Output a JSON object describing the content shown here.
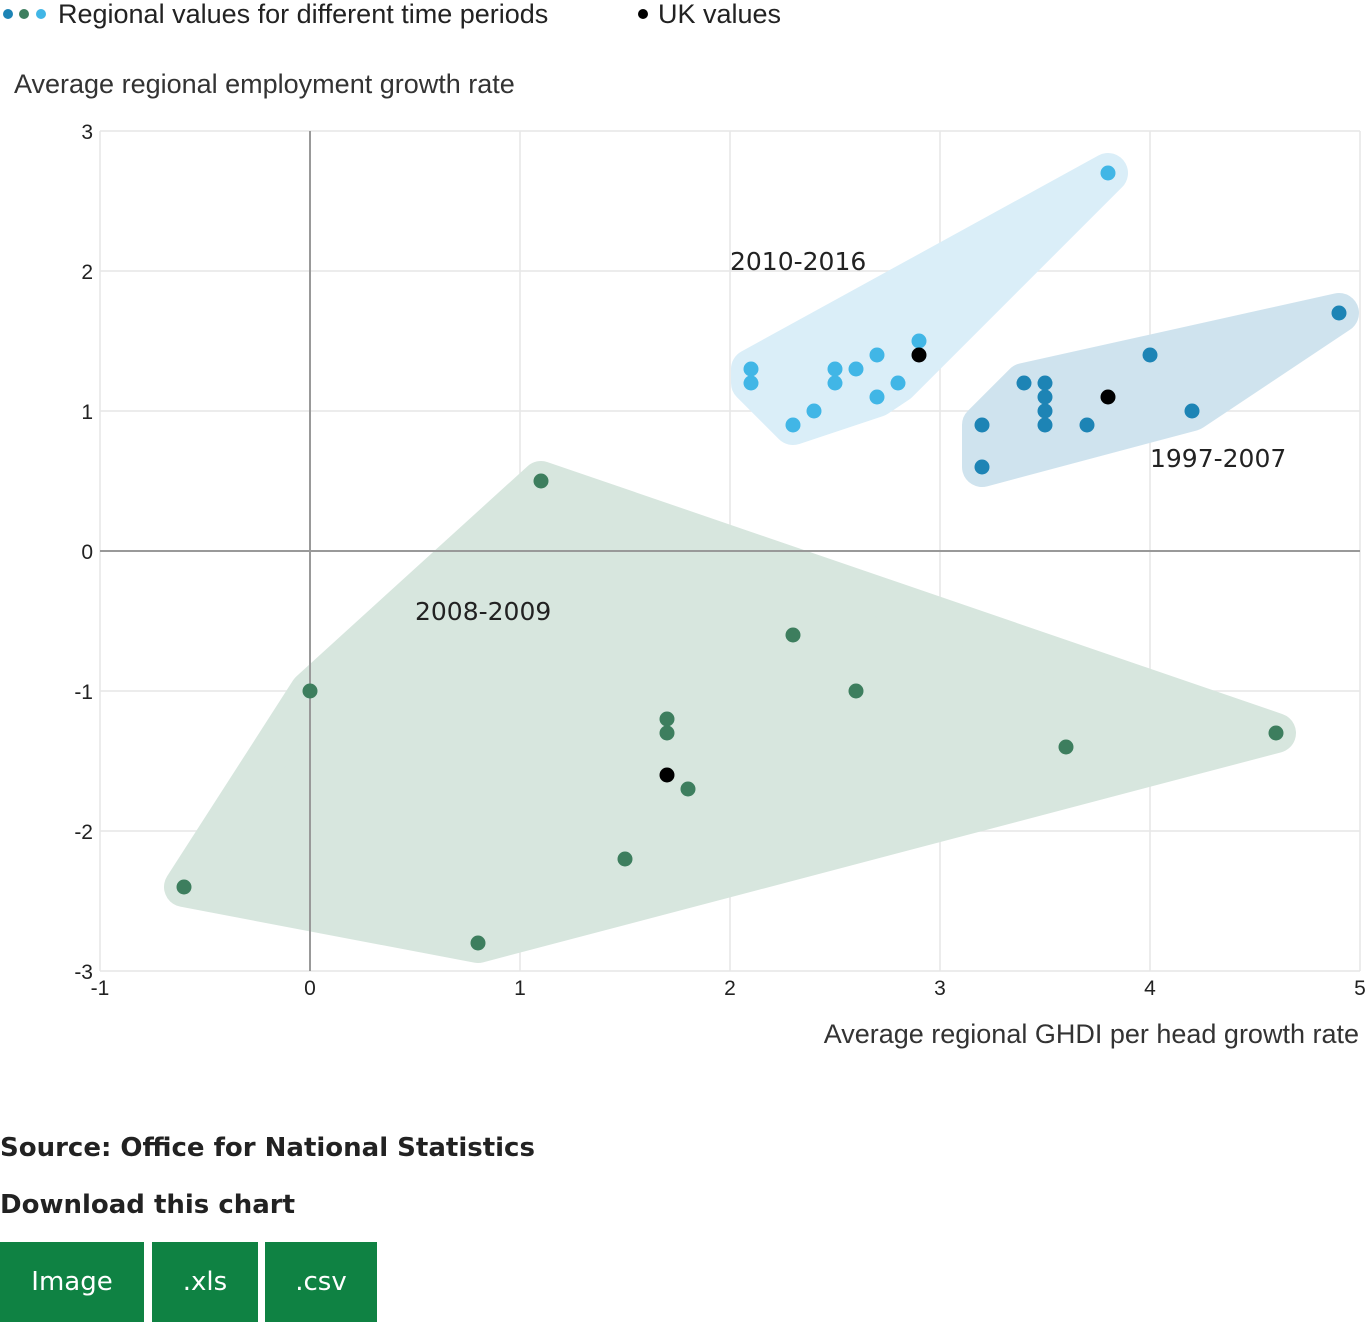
{
  "legend": {
    "regional_label": "Regional values for different time periods",
    "uk_label": "UK values"
  },
  "colors": {
    "p1997": "#1d84b5",
    "p2008": "#3d7e5e",
    "p2010": "#41b6e6",
    "uk": "#000000",
    "hull1997": "#cfe3ee",
    "hull2008": "#d7e6de",
    "hull2010": "#daeef8",
    "button": "#0f8243"
  },
  "chart_data": {
    "type": "scatter",
    "title": "",
    "xlabel": "Average regional GHDI per head growth rate",
    "ylabel": "Average regional employment growth rate",
    "xlim": [
      -1,
      5
    ],
    "ylim": [
      -3,
      3
    ],
    "xticks": [
      "-1",
      "0",
      "1",
      "2",
      "3",
      "4",
      "5"
    ],
    "yticks": [
      "-3",
      "-2",
      "-1",
      "0",
      "1",
      "2",
      "3"
    ],
    "grid": true,
    "legend_position": "top-left",
    "series": [
      {
        "name": "1997-2007",
        "points": [
          [
            3.2,
            0.9
          ],
          [
            3.2,
            0.6
          ],
          [
            3.4,
            1.2
          ],
          [
            3.5,
            1.2
          ],
          [
            3.5,
            1.1
          ],
          [
            3.5,
            1.0
          ],
          [
            3.5,
            0.9
          ],
          [
            3.7,
            0.9
          ],
          [
            4.0,
            1.4
          ],
          [
            4.2,
            1.0
          ],
          [
            4.9,
            1.7
          ]
        ],
        "uk": [
          3.8,
          1.1
        ]
      },
      {
        "name": "2008-2009",
        "points": [
          [
            -0.6,
            -2.4
          ],
          [
            0.0,
            -1.0
          ],
          [
            0.8,
            -2.8
          ],
          [
            1.1,
            0.5
          ],
          [
            1.5,
            -2.2
          ],
          [
            1.7,
            -1.2
          ],
          [
            1.7,
            -1.3
          ],
          [
            1.8,
            -1.7
          ],
          [
            2.3,
            -0.6
          ],
          [
            2.6,
            -1.0
          ],
          [
            3.6,
            -1.4
          ],
          [
            4.6,
            -1.3
          ]
        ],
        "uk": [
          1.7,
          -1.6
        ]
      },
      {
        "name": "2010-2016",
        "points": [
          [
            2.1,
            1.3
          ],
          [
            2.1,
            1.2
          ],
          [
            2.3,
            0.9
          ],
          [
            2.4,
            1.0
          ],
          [
            2.5,
            1.3
          ],
          [
            2.5,
            1.2
          ],
          [
            2.6,
            1.3
          ],
          [
            2.7,
            1.4
          ],
          [
            2.7,
            1.1
          ],
          [
            2.8,
            1.2
          ],
          [
            2.9,
            1.5
          ],
          [
            3.8,
            2.7
          ]
        ],
        "uk": [
          2.9,
          1.4
        ]
      }
    ]
  },
  "source": "Source: Office for National Statistics",
  "download": {
    "title": "Download this chart",
    "buttons": [
      "Image",
      ".xls",
      ".csv"
    ]
  }
}
